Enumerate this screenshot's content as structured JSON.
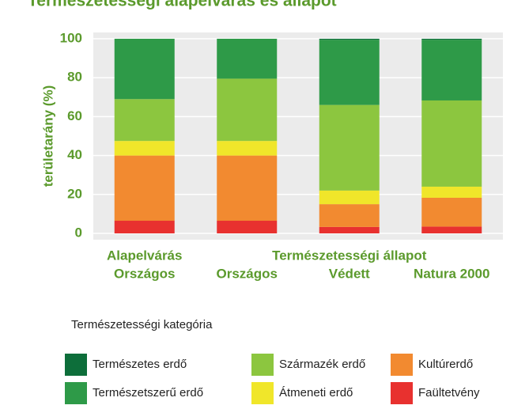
{
  "chart_data": {
    "type": "stacked_bar",
    "title": "Természetességi alapelvárás és állapot",
    "y_label": "területarány (%)",
    "categories": [
      "Országos",
      "Országos",
      "Védett",
      "Natura 2000"
    ],
    "groups": [
      {
        "name": "Alapelvárás",
        "count": 1
      },
      {
        "name": "Természetességi állapot",
        "count": 3
      }
    ],
    "legend_title": "Természetességi kategória",
    "series": [
      {
        "name": "Faültetvény",
        "color": "#e8312f",
        "values": [
          6.5,
          6.5,
          3.3,
          3.5
        ]
      },
      {
        "name": "Kultúrerdő",
        "color": "#f28a30",
        "values": [
          33.5,
          33.5,
          11.7,
          14.8
        ]
      },
      {
        "name": "Átmeneti erdő",
        "color": "#f0e62a",
        "values": [
          7.5,
          7.5,
          7,
          5.7
        ]
      },
      {
        "name": "Származék erdő",
        "color": "#8cc63f",
        "values": [
          21.5,
          32,
          44,
          44.3
        ]
      },
      {
        "name": "Természetszerű erdő",
        "color": "#2e9a48",
        "values": [
          31,
          20.5,
          33.5,
          31.2
        ]
      },
      {
        "name": "Természetes erdő",
        "color": "#0d6e3a",
        "values": [
          0,
          0,
          0.5,
          0.5
        ]
      }
    ],
    "ylim": [
      0,
      100
    ],
    "yticks": [
      0,
      20,
      40,
      60,
      80,
      100
    ],
    "grid": true
  }
}
